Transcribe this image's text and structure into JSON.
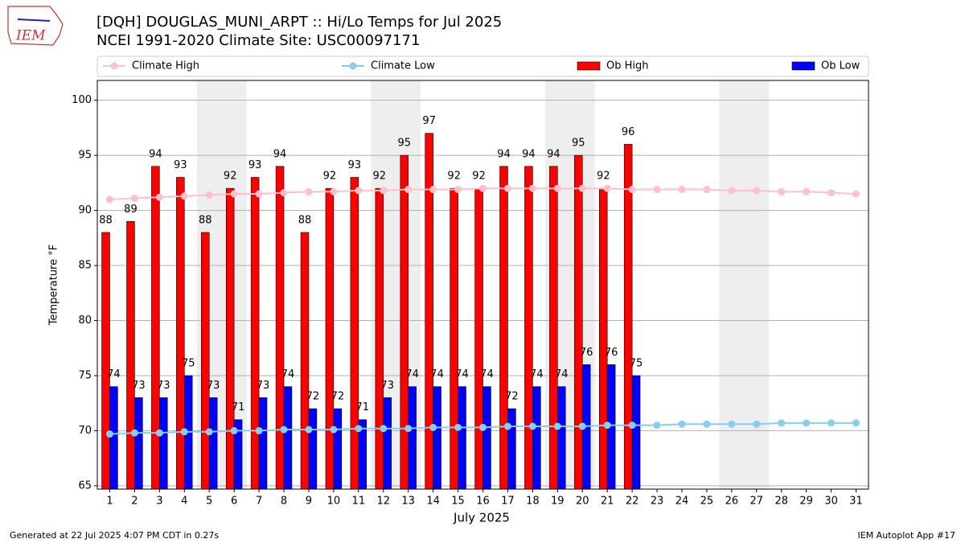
{
  "logo_text": "IEM",
  "footer_left": "Generated at 22 Jul 2025 4:07 PM CDT in 0.27s",
  "footer_right": "IEM Autoplot App #17",
  "chart_data": {
    "type": "bar_line",
    "title": "[DQH] DOUGLAS_MUNI_ARPT :: Hi/Lo Temps for Jul 2025",
    "subtitle": "NCEI 1991-2020 Climate Site: USC00097171",
    "x_label": "July 2025",
    "y_label": "Temperature °F",
    "x": [
      1,
      2,
      3,
      4,
      5,
      6,
      7,
      8,
      9,
      10,
      11,
      12,
      13,
      14,
      15,
      16,
      17,
      18,
      19,
      20,
      21,
      22,
      23,
      24,
      25,
      26,
      27,
      28,
      29,
      30,
      31
    ],
    "xlim": [
      0.5,
      31.5
    ],
    "xticks": [
      1,
      2,
      3,
      4,
      5,
      6,
      7,
      8,
      9,
      10,
      11,
      12,
      13,
      14,
      15,
      16,
      17,
      18,
      19,
      20,
      21,
      22,
      23,
      24,
      25,
      26,
      27,
      28,
      29,
      30,
      31
    ],
    "ylim": [
      64.7,
      101.8
    ],
    "yticks": [
      65,
      70,
      75,
      80,
      85,
      90,
      95,
      100
    ],
    "grid": true,
    "shaded_ranges": [
      [
        5,
        6
      ],
      [
        12,
        13
      ],
      [
        19,
        20
      ],
      [
        26,
        27
      ]
    ],
    "series": [
      {
        "name": "Climate High",
        "kind": "line",
        "color": "#ffc0cb",
        "values": [
          91.0,
          91.1,
          91.2,
          91.3,
          91.4,
          91.5,
          91.5,
          91.6,
          91.7,
          91.7,
          91.8,
          91.8,
          91.9,
          91.9,
          91.9,
          92.0,
          92.0,
          92.0,
          92.0,
          92.0,
          92.0,
          91.9,
          91.9,
          91.9,
          91.9,
          91.8,
          91.8,
          91.7,
          91.7,
          91.6,
          91.5
        ]
      },
      {
        "name": "Climate Low",
        "kind": "line",
        "color": "#87ceeb",
        "values": [
          69.7,
          69.8,
          69.8,
          69.9,
          69.9,
          70.0,
          70.0,
          70.1,
          70.1,
          70.1,
          70.2,
          70.2,
          70.2,
          70.3,
          70.3,
          70.3,
          70.4,
          70.4,
          70.4,
          70.4,
          70.5,
          70.5,
          70.5,
          70.6,
          70.6,
          70.6,
          70.6,
          70.7,
          70.7,
          70.7,
          70.7
        ]
      },
      {
        "name": "Ob High",
        "kind": "bar",
        "color": "#ff0000",
        "values": [
          88,
          89,
          94,
          93,
          88,
          92,
          93,
          94,
          88,
          92,
          93,
          92,
          95,
          97,
          92,
          92,
          94,
          94,
          94,
          95,
          92,
          96,
          null,
          null,
          null,
          null,
          null,
          null,
          null,
          null,
          null
        ]
      },
      {
        "name": "Ob Low",
        "kind": "bar",
        "color": "#0000ff",
        "values": [
          74,
          73,
          73,
          75,
          73,
          71,
          73,
          74,
          72,
          72,
          71,
          73,
          74,
          74,
          74,
          74,
          72,
          74,
          74,
          76,
          76,
          75,
          null,
          null,
          null,
          null,
          null,
          null,
          null,
          null,
          null
        ]
      }
    ]
  }
}
